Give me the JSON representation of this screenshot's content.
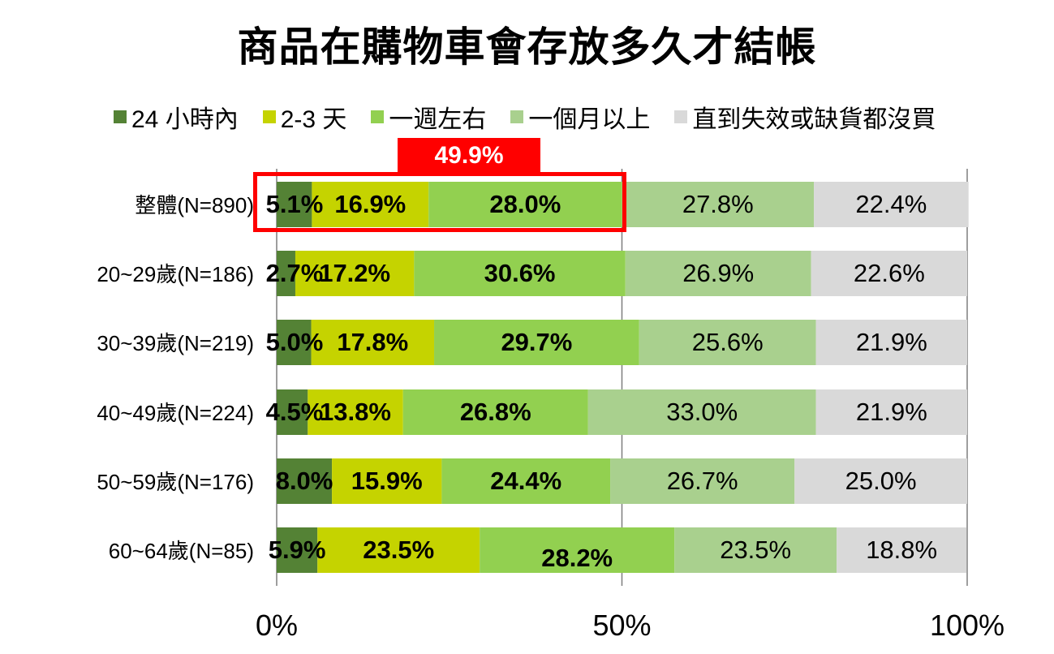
{
  "chart_data": {
    "type": "bar",
    "orientation": "horizontal",
    "stacked": true,
    "title": "商品在購物車會存放多久才結帳",
    "categories": [
      "整體(N=890)",
      "20~29歲(N=186)",
      "30~39歲(N=219)",
      "40~49歲(N=224)",
      "50~59歲(N=176)",
      "60~64歲(N=85)"
    ],
    "series": [
      {
        "name": "24 小時內",
        "color": "#548235",
        "values": [
          5.1,
          2.7,
          5.0,
          4.5,
          8.0,
          5.9
        ],
        "labels": [
          "5.1%",
          "2.7%",
          "5.0%",
          "4.5%",
          "8.0%",
          "5.9%"
        ],
        "bold": true
      },
      {
        "name": "2-3 天",
        "color": "#c5d300",
        "values": [
          16.9,
          17.2,
          17.8,
          13.8,
          15.9,
          23.5
        ],
        "labels": [
          "16.9%",
          "17.2%",
          "17.8%",
          "13.8%",
          "15.9%",
          "23.5%"
        ],
        "bold": true
      },
      {
        "name": "一週左右",
        "color": "#92d050",
        "values": [
          28.0,
          30.6,
          29.7,
          26.8,
          24.4,
          28.2
        ],
        "labels": [
          "28.0%",
          "30.6%",
          "29.7%",
          "26.8%",
          "24.4%",
          "28.2%"
        ],
        "bold": true
      },
      {
        "name": "一個月以上",
        "color": "#a9d08e",
        "values": [
          27.8,
          26.9,
          25.6,
          33.0,
          26.7,
          23.5
        ],
        "labels": [
          "27.8%",
          "26.9%",
          "25.6%",
          "33.0%",
          "26.7%",
          "23.5%"
        ],
        "bold": false
      },
      {
        "name": "直到失效或缺貨都沒買",
        "color": "#d9d9d9",
        "values": [
          22.4,
          22.6,
          21.9,
          21.9,
          25.0,
          18.8
        ],
        "labels": [
          "22.4%",
          "22.6%",
          "21.9%",
          "21.9%",
          "25.0%",
          "18.8%"
        ],
        "bold": false
      }
    ],
    "xlim": [
      0,
      100
    ],
    "xticks": [
      "0%",
      "50%",
      "100%"
    ],
    "xtick_values": [
      0,
      50,
      100
    ],
    "grid": true,
    "legend_position": "top",
    "annotation": {
      "text": "49.9%",
      "color": "#ff0000"
    }
  }
}
